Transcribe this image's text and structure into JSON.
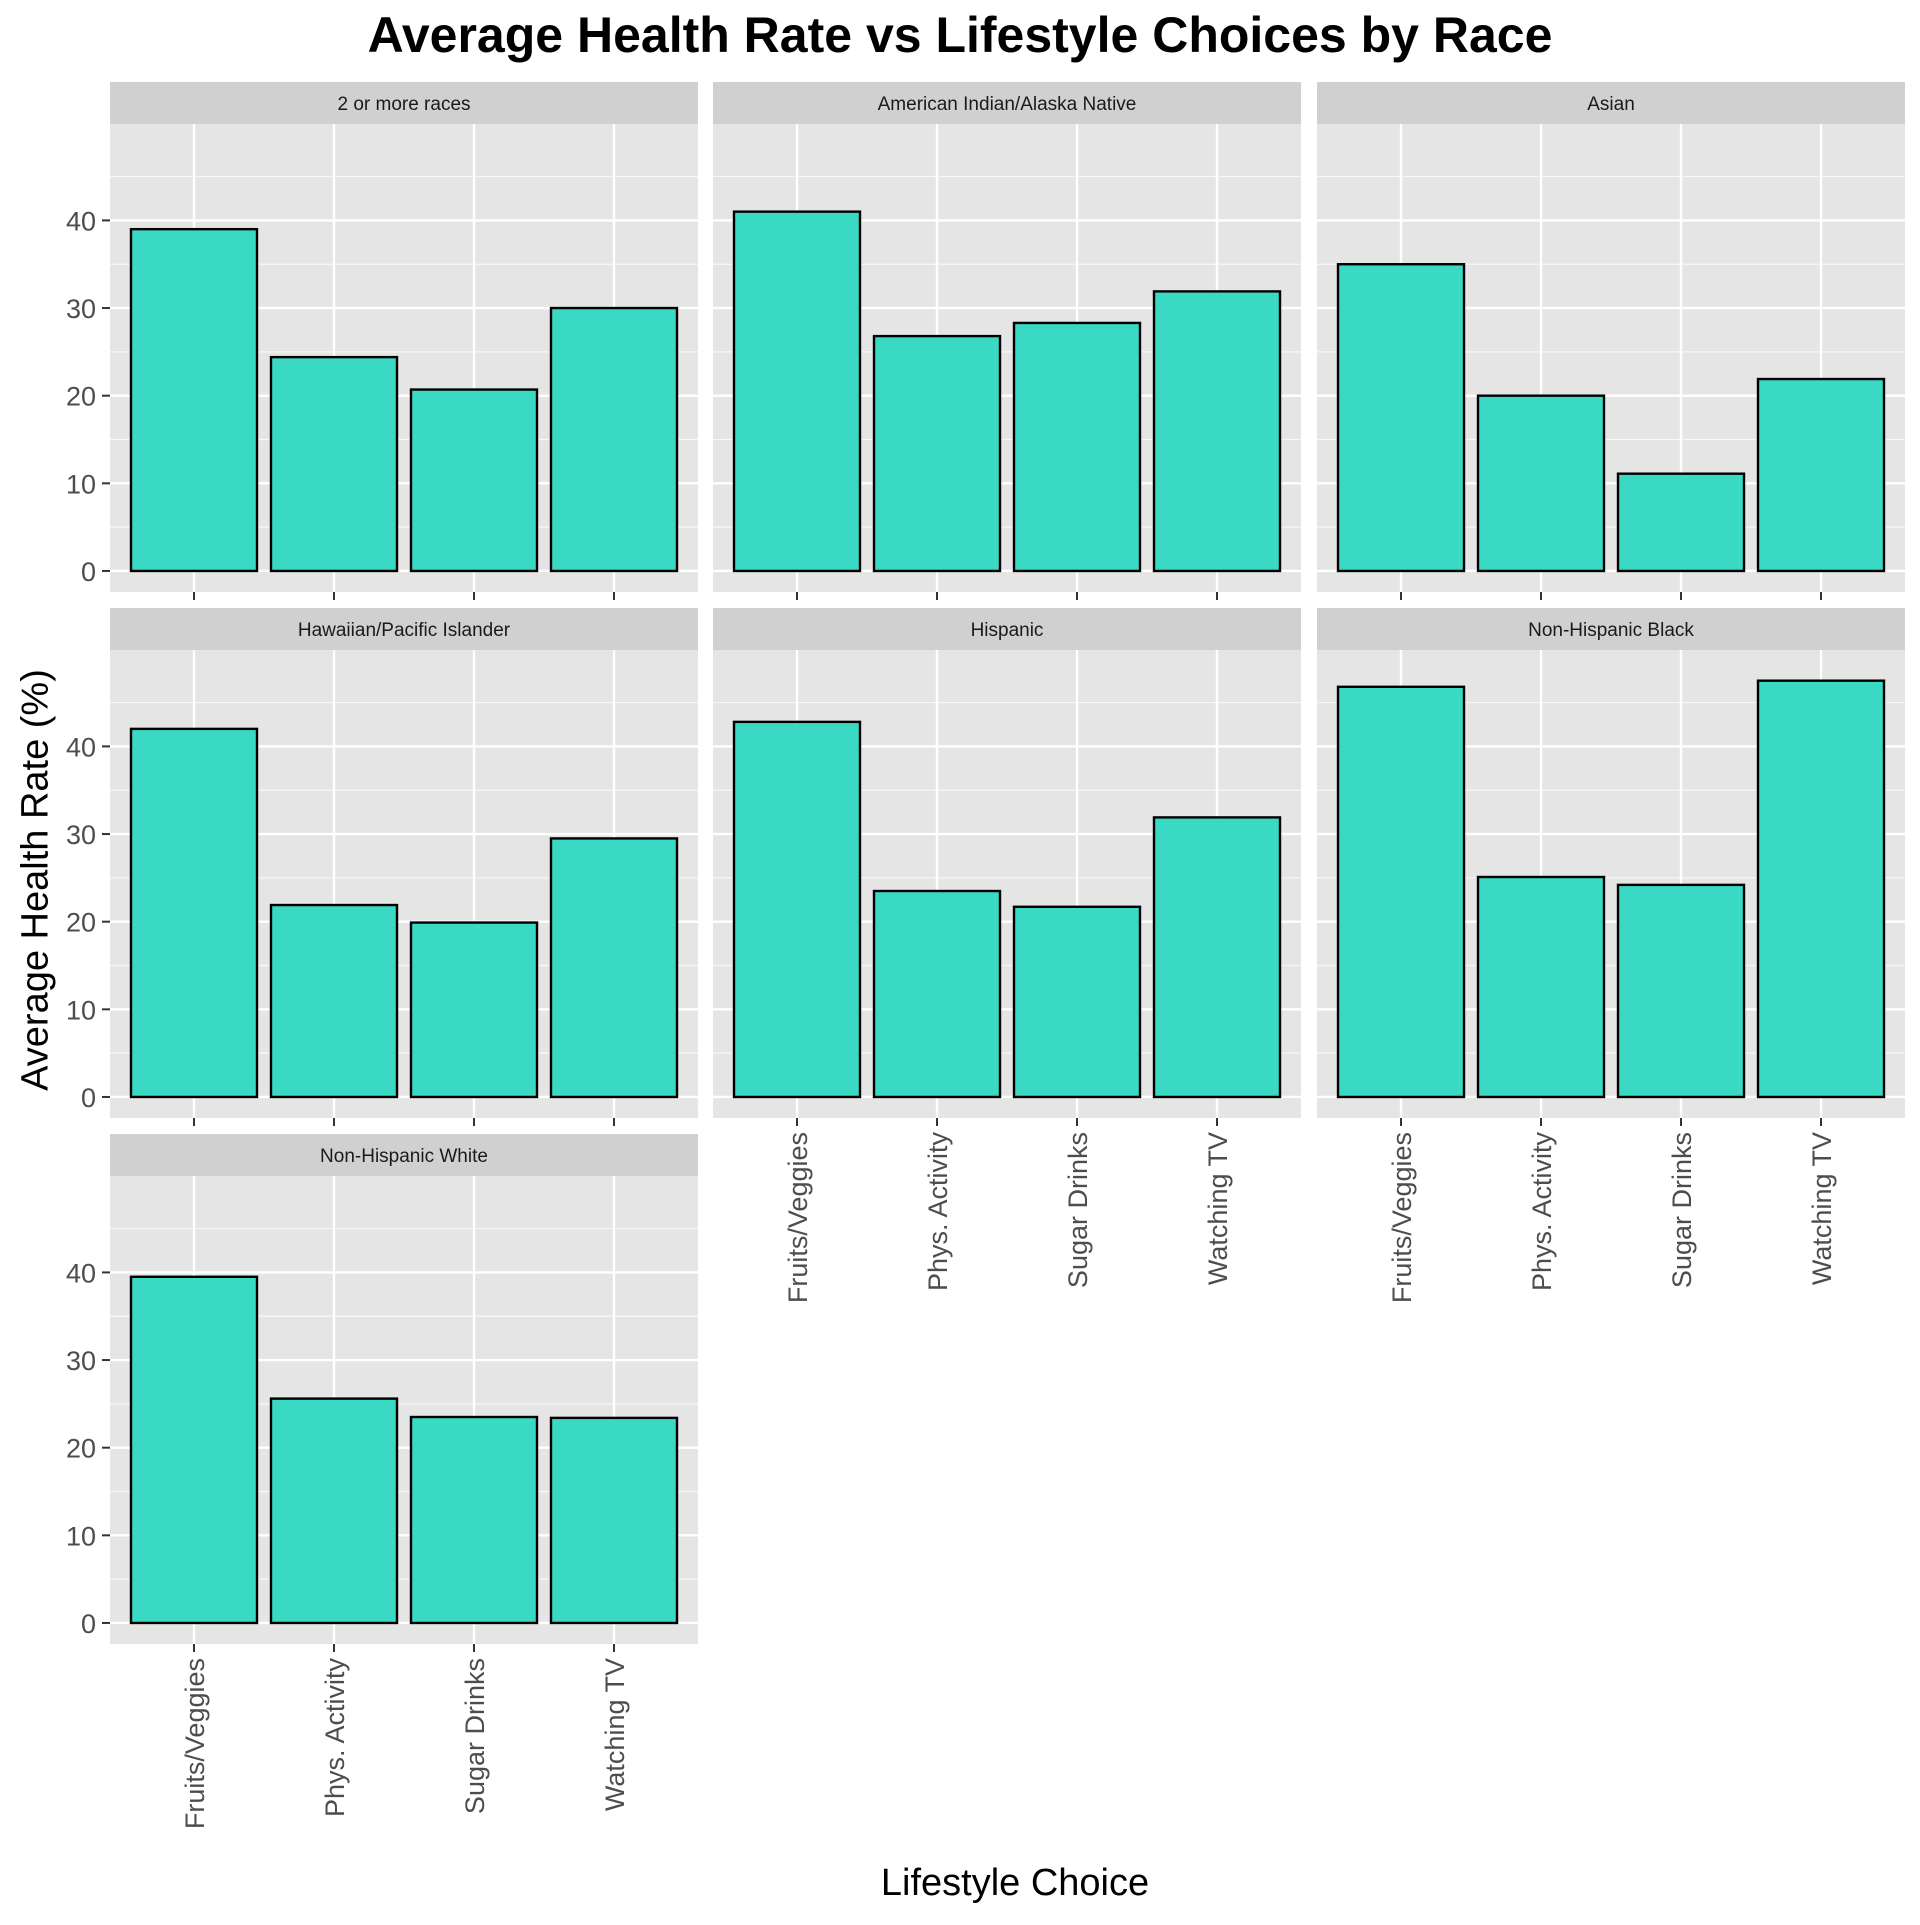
{
  "chart_data": {
    "type": "bar",
    "title": "Average Health Rate vs Lifestyle Choices by Race",
    "xlabel": "Lifestyle Choice",
    "ylabel": "Average Health Rate (%)",
    "categories": [
      "Fruits/Veggies",
      "Phys. Activity",
      "Sugar Drinks",
      "Watching TV"
    ],
    "y_ticks": [
      0,
      10,
      20,
      30,
      40
    ],
    "ylim": [
      -2.4,
      51
    ],
    "grid": true,
    "facets": [
      {
        "name": "2 or more races",
        "values": [
          39.0,
          24.4,
          20.7,
          30.0
        ]
      },
      {
        "name": "American Indian/Alaska Native",
        "values": [
          41.0,
          26.8,
          28.3,
          31.9
        ]
      },
      {
        "name": "Asian",
        "values": [
          35.0,
          20.0,
          11.1,
          21.9
        ]
      },
      {
        "name": "Hawaiian/Pacific Islander",
        "values": [
          42.0,
          21.9,
          19.9,
          29.5
        ]
      },
      {
        "name": "Hispanic",
        "values": [
          42.8,
          23.5,
          21.7,
          31.9
        ]
      },
      {
        "name": "Non-Hispanic Black",
        "values": [
          46.8,
          25.1,
          24.2,
          47.5
        ]
      },
      {
        "name": "Non-Hispanic White",
        "values": [
          39.5,
          25.6,
          23.5,
          23.4
        ]
      }
    ],
    "colors": {
      "bar_fill": "#3ad9c4",
      "bar_stroke": "#000000",
      "panel_bg": "#e5e5e5",
      "strip_bg": "#d0d0d0",
      "grid": "#ffffff"
    }
  }
}
